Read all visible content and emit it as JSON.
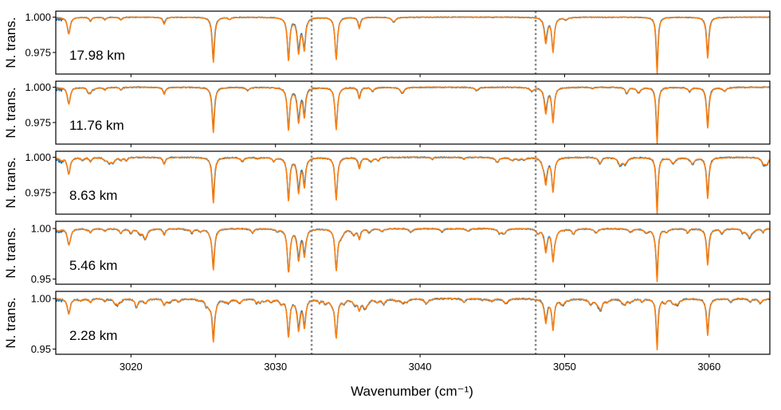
{
  "chart_data": {
    "type": "line",
    "xlabel": "Wavenumber (cm⁻¹)",
    "ylabel": "N. trans.",
    "xlim": [
      3014.8,
      3064.2
    ],
    "xticks": [
      3020,
      3030,
      3040,
      3050,
      3060
    ],
    "xtick_labels": [
      "3020",
      "3030",
      "3040",
      "3050",
      "3060"
    ],
    "vlines": [
      3032.5,
      3048.0
    ],
    "vline_style": "dotted gray",
    "colors": {
      "series_1": "#1f77b4",
      "series_2": "#ff7f0e",
      "vline": "#888888"
    },
    "lines": [
      {
        "center": 3015.7,
        "depth": 0.012,
        "width": 0.12
      },
      {
        "center": 3017.2,
        "depth": 0.003,
        "width": 0.1
      },
      {
        "center": 3018.2,
        "depth": 0.002,
        "width": 0.1
      },
      {
        "center": 3019.3,
        "depth": 0.002,
        "width": 0.1
      },
      {
        "center": 3022.3,
        "depth": 0.005,
        "width": 0.1
      },
      {
        "center": 3025.7,
        "depth": 0.032,
        "width": 0.1
      },
      {
        "center": 3030.9,
        "depth": 0.03,
        "width": 0.1
      },
      {
        "center": 3031.6,
        "depth": 0.024,
        "width": 0.12
      },
      {
        "center": 3032.0,
        "depth": 0.02,
        "width": 0.1
      },
      {
        "center": 3034.2,
        "depth": 0.03,
        "width": 0.1
      },
      {
        "center": 3035.8,
        "depth": 0.008,
        "width": 0.1
      },
      {
        "center": 3048.7,
        "depth": 0.018,
        "width": 0.12
      },
      {
        "center": 3049.2,
        "depth": 0.024,
        "width": 0.1
      },
      {
        "center": 3056.4,
        "depth": 0.04,
        "width": 0.08
      },
      {
        "center": 3059.9,
        "depth": 0.029,
        "width": 0.1
      }
    ],
    "panels": [
      {
        "label": "17.98 km",
        "ylim": [
          0.962,
          1.002
        ],
        "yticks": [
          1.0,
          0.975
        ],
        "ytick_labels": [
          "1.000",
          "0.975"
        ],
        "depth_scale": 1.0,
        "noise": 0.0006,
        "weak_lines": 4
      },
      {
        "label": "11.76 km",
        "ylim": [
          0.962,
          1.002
        ],
        "yticks": [
          1.0,
          0.975
        ],
        "ytick_labels": [
          "1.000",
          "0.975"
        ],
        "depth_scale": 1.0,
        "noise": 0.0008,
        "weak_lines": 12
      },
      {
        "label": "8.63 km",
        "ylim": [
          0.962,
          1.002
        ],
        "yticks": [
          1.0,
          0.975
        ],
        "ytick_labels": [
          "1.000",
          "0.975"
        ],
        "depth_scale": 1.0,
        "noise": 0.0009,
        "weak_lines": 25
      },
      {
        "label": "5.46 km",
        "ylim": [
          0.948,
          1.004
        ],
        "yticks": [
          1.0,
          0.95
        ],
        "ytick_labels": [
          "1.00",
          "0.95"
        ],
        "depth_scale": 1.25,
        "noise": 0.0012,
        "weak_lines": 45
      },
      {
        "label": "2.28 km",
        "ylim": [
          0.948,
          1.004
        ],
        "yticks": [
          1.0,
          0.95
        ],
        "ytick_labels": [
          "1.00",
          "0.95"
        ],
        "depth_scale": 1.25,
        "noise": 0.0015,
        "weak_lines": 70
      }
    ]
  }
}
